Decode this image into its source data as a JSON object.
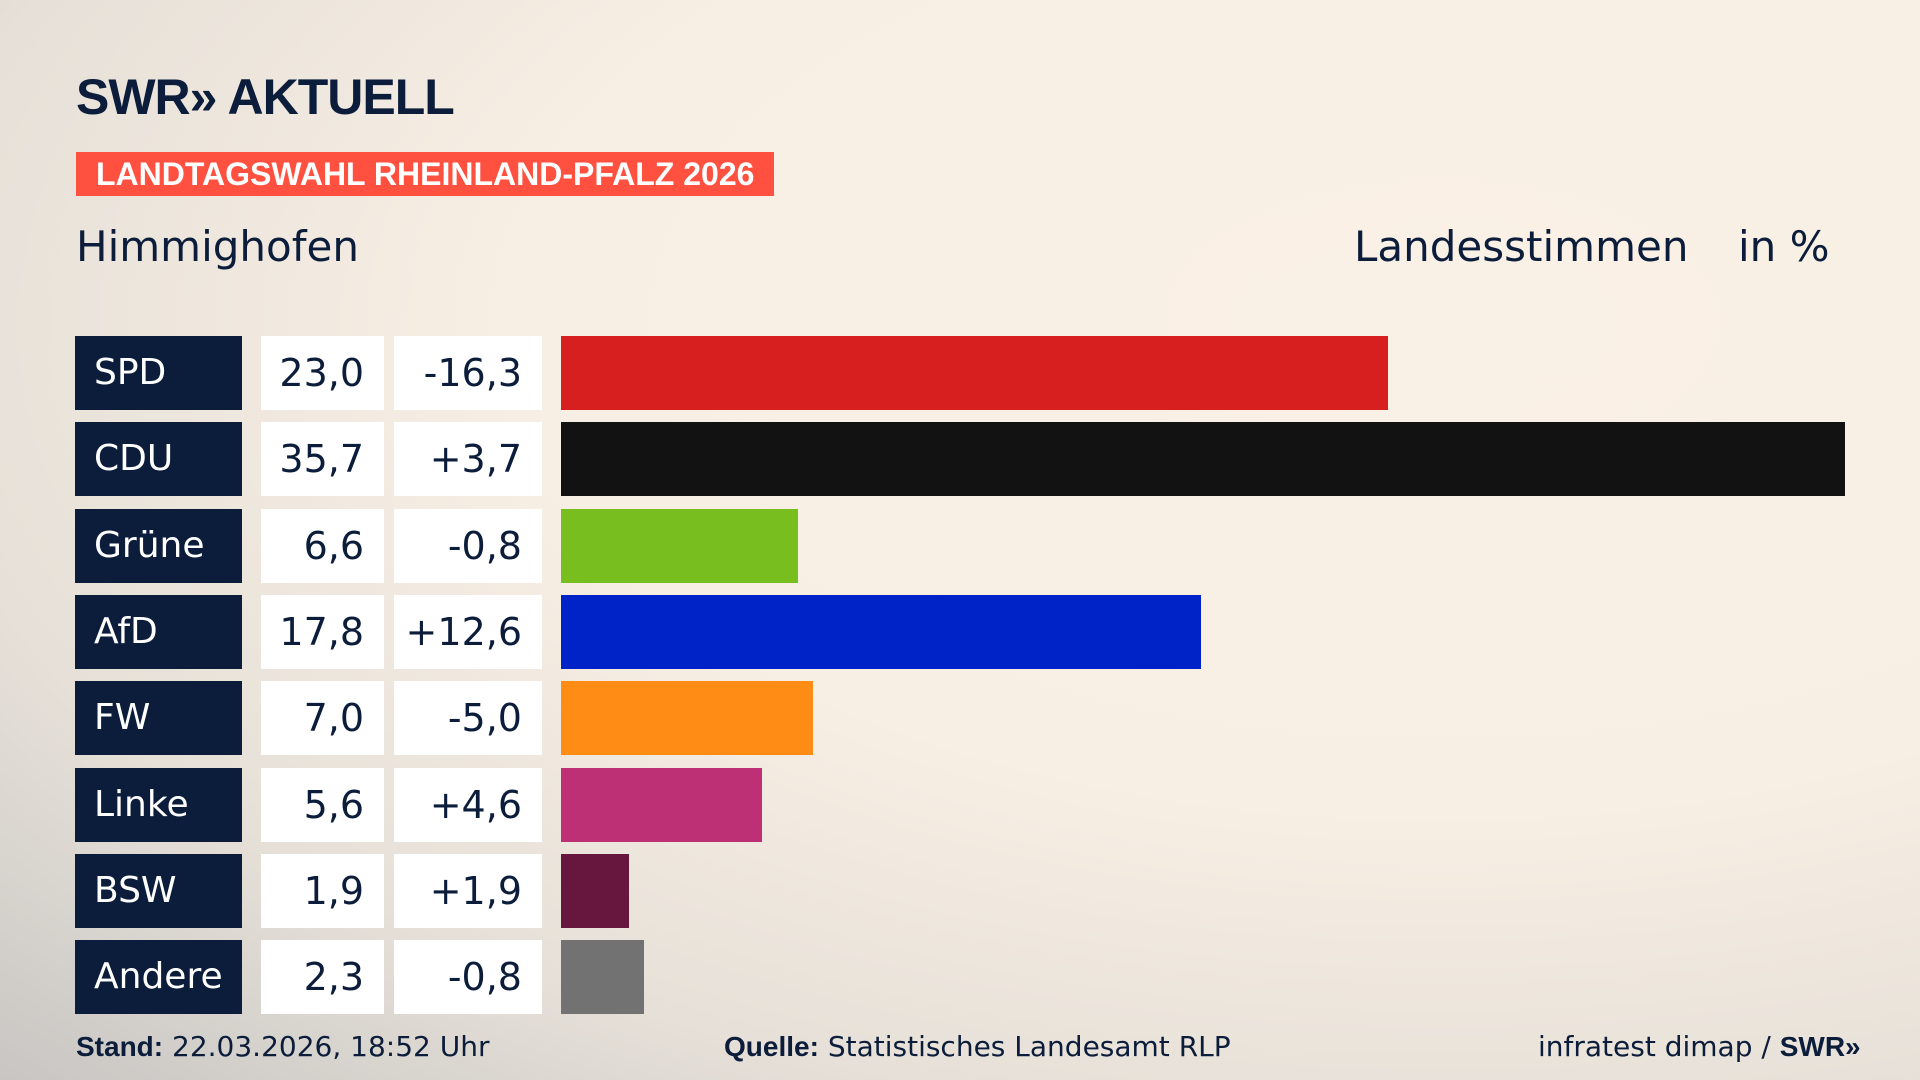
{
  "header": {
    "logo": "SWR» AKTUELL",
    "banner": "LANDTAGSWAHL RHEINLAND-PFALZ 2026",
    "place": "Himmighofen",
    "metric": "Landesstimmen",
    "unit": "in %"
  },
  "chart_data": {
    "type": "bar",
    "orientation": "horizontal",
    "categories": [
      "SPD",
      "CDU",
      "Grüne",
      "AfD",
      "FW",
      "Linke",
      "BSW",
      "Andere"
    ],
    "values": [
      23.0,
      35.7,
      6.6,
      17.8,
      7.0,
      5.6,
      1.9,
      2.3
    ],
    "labels": [
      "23,0",
      "35,7",
      "6,6",
      "17,8",
      "7,0",
      "5,6",
      "1,9",
      "2,3"
    ],
    "changes": [
      "-16,3",
      "+3,7",
      "-0,8",
      "+12,6",
      "-5,0",
      "+4,6",
      "+1,9",
      "-0,8"
    ],
    "colors": [
      "#d81f1f",
      "#121212",
      "#78be1e",
      "#0023c8",
      "#ff8c14",
      "#bd3075",
      "#67163e",
      "#727272"
    ],
    "xlim": [
      0,
      35.7
    ],
    "grid": false
  },
  "footer": {
    "stand_label": "Stand:",
    "stand_value": "22.03.2026, 18:52 Uhr",
    "source_label": "Quelle:",
    "source_value": "Statistisches Landesamt RLP",
    "credit": "infratest dimap / ",
    "credit_logo": "SWR»"
  }
}
